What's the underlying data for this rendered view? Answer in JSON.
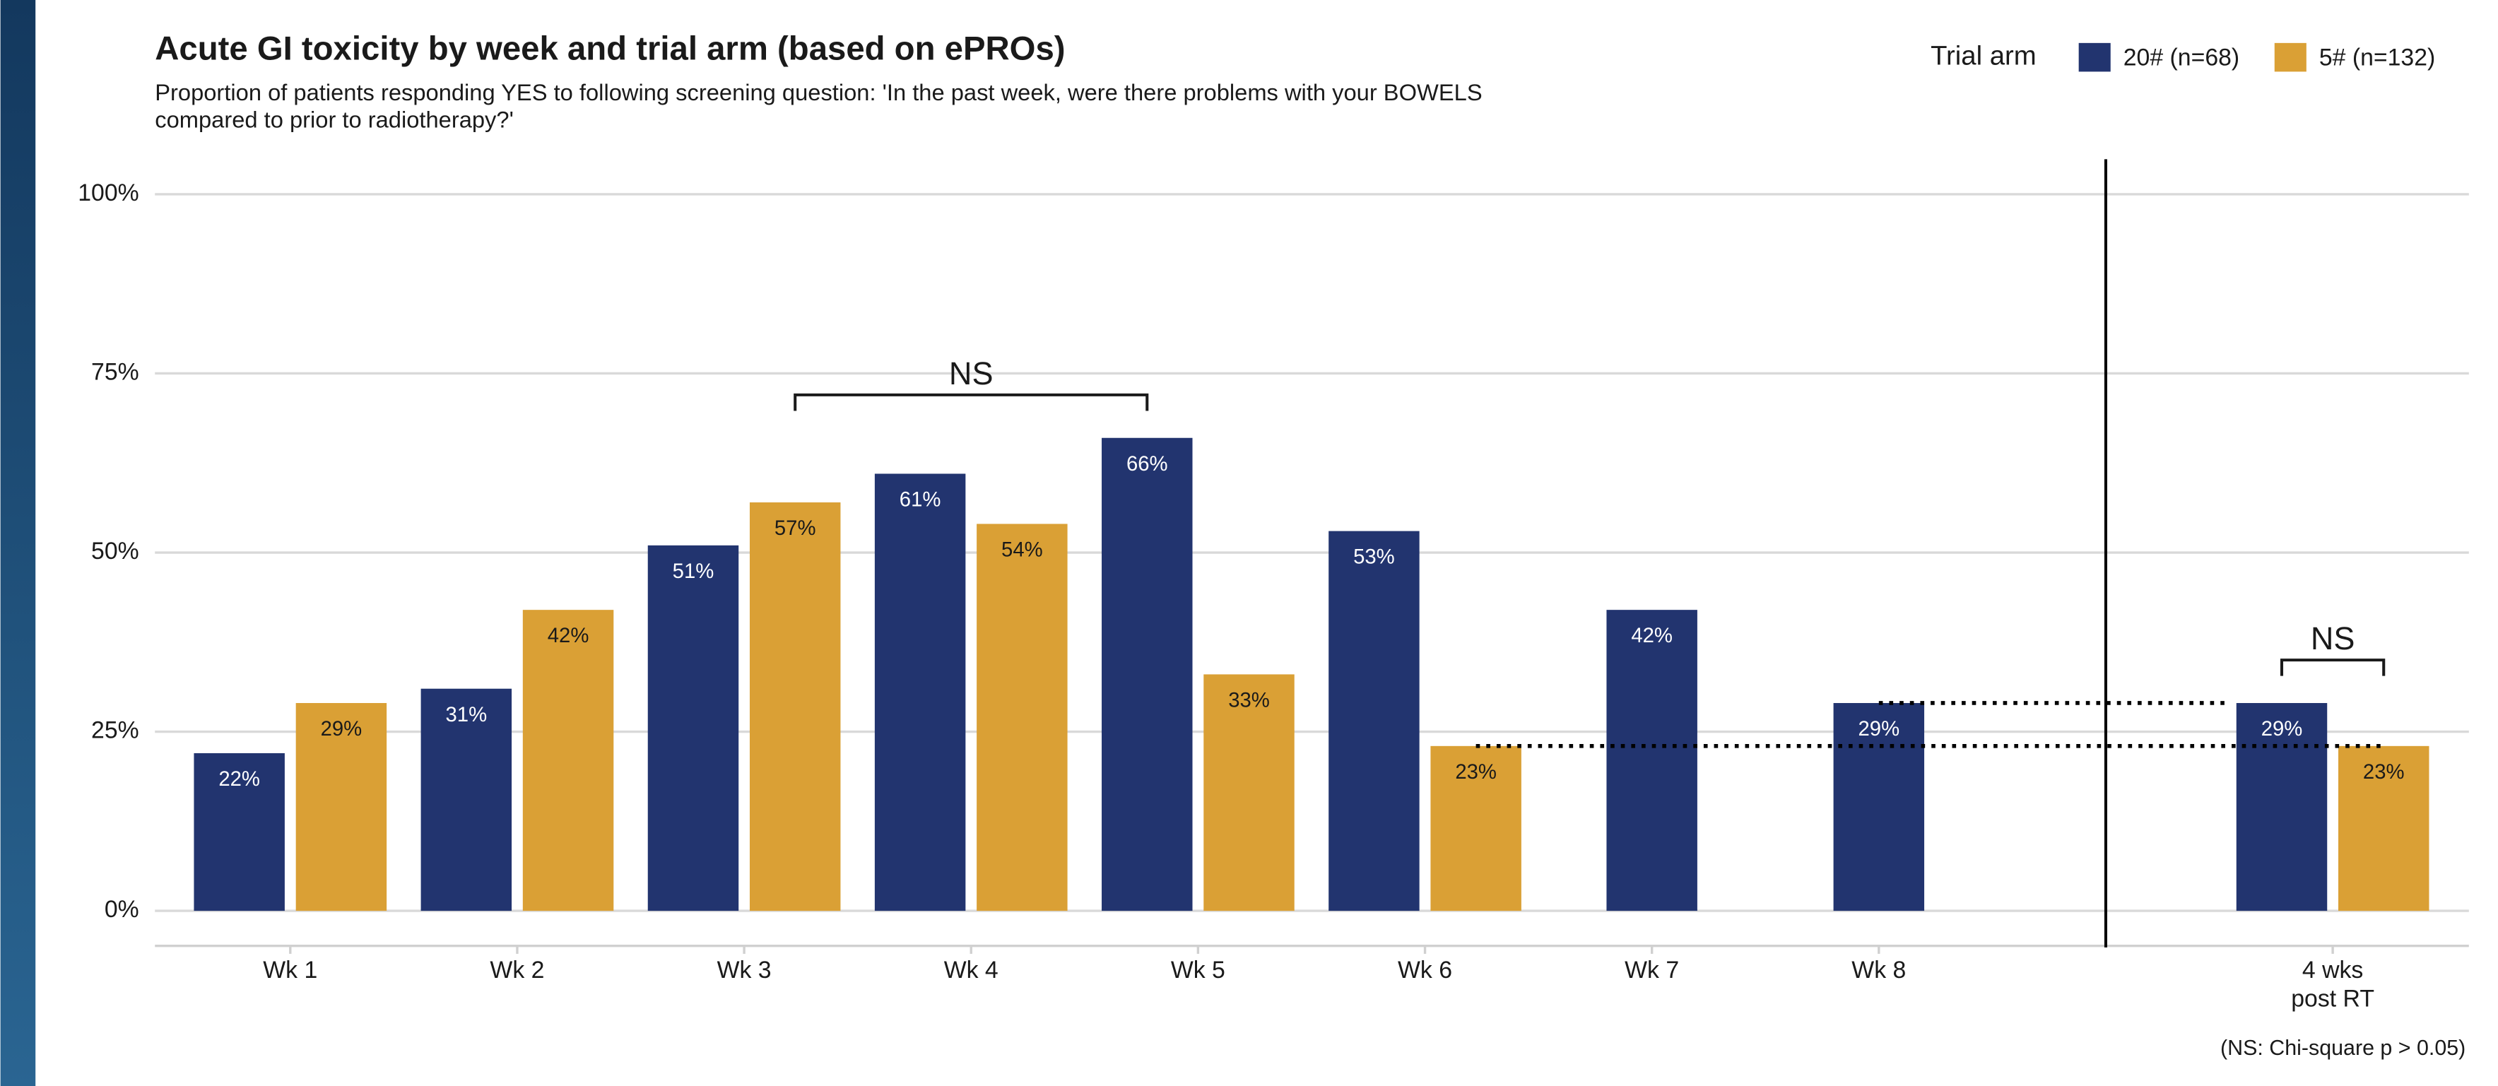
{
  "chart_data": {
    "type": "bar",
    "title": "Acute GI toxicity by week and trial arm (based on ePROs)",
    "subtitle": "Proportion of patients responding YES to following screening question: 'In the past week, were there problems with your BOWELS\ncompared to prior to radiotherapy?'",
    "legend_title": "Trial arm",
    "legend_position": "top-right",
    "footnote": "(NS: Chi-square p > 0.05)",
    "categories": [
      "Wk 1",
      "Wk 2",
      "Wk 3",
      "Wk 4",
      "Wk 5",
      "Wk 6",
      "Wk 7",
      "Wk 8",
      null,
      "4 wks\npost RT"
    ],
    "series": [
      {
        "name": "20# (n=68)",
        "color": "#22346f",
        "values": [
          22,
          31,
          51,
          61,
          66,
          53,
          42,
          29,
          null,
          29
        ],
        "value_labels": [
          "22%",
          "31%",
          "51%",
          "61%",
          "66%",
          "53%",
          "42%",
          "29%",
          null,
          "29%"
        ]
      },
      {
        "name": "5# (n=132)",
        "color": "#daa035",
        "values": [
          29,
          42,
          57,
          54,
          33,
          23,
          null,
          null,
          null,
          23
        ],
        "value_labels": [
          "29%",
          "42%",
          "57%",
          "54%",
          "33%",
          "23%",
          null,
          null,
          null,
          "23%"
        ]
      }
    ],
    "ylim": [
      -5,
      106
    ],
    "yticks": [
      {
        "value": 0,
        "label": "0%"
      },
      {
        "value": 25,
        "label": "25%"
      },
      {
        "value": 50,
        "label": "50%"
      },
      {
        "value": 75,
        "label": "75%"
      },
      {
        "value": 100,
        "label": "100%"
      }
    ],
    "grid": true,
    "annotations": [
      {
        "text": "NS",
        "y": 72,
        "from_category": 2,
        "from_series": 1,
        "to_category": 4,
        "to_series": 0
      },
      {
        "text": "NS",
        "y": 35,
        "from_category": 9,
        "from_series": 0,
        "to_category": 9,
        "to_series": 1
      }
    ],
    "reference_lines": [
      {
        "y": 29,
        "from_category": 7,
        "from_series": 0,
        "to_category": 9,
        "to_series": 0
      },
      {
        "y": 23,
        "from_category": 5,
        "from_series": 1,
        "to_category": 9,
        "to_series": 1
      }
    ]
  }
}
